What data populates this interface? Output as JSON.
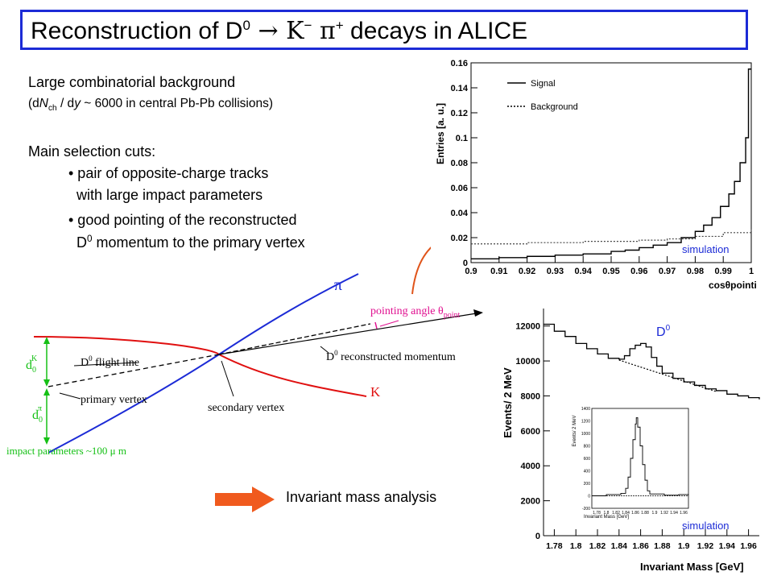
{
  "slide": {
    "title_main": "Reconstruction of D",
    "title_sup": "0",
    "title_arrow": " → K",
    "title_kminus": "−",
    "title_pi": " π",
    "title_piplus": "+",
    "title_end": " decays in ALICE",
    "line1": "Large combinatorial background",
    "line2_pre": "(d",
    "line2_N": "N",
    "line2_sub": "ch",
    "line2_mid": " / d",
    "line2_y": "y",
    "line2_post": " ~ 6000 in central Pb-Pb collisions)",
    "cuts_header": "Main selection cuts:",
    "cut1a": "• pair of opposite-charge tracks",
    "cut1b": "with large impact parameters",
    "cut2a": "• good pointing of the reconstructed",
    "cut2b_pre": "D",
    "cut2b_sup": "0",
    "cut2b_post": " momentum to the primary vertex",
    "inv_mass_label": "Invariant mass analysis",
    "arrow_color": "#f05a1e",
    "accent_color": "#1c2bd6"
  },
  "diagram": {
    "pi_label": "π",
    "k_label": "K",
    "pointing_angle": "pointing angle θ",
    "pointing_sub": "point",
    "flight_line": "D",
    "flight_line_sup": "0",
    "flight_line_post": " flight line",
    "reco_mom": "D",
    "reco_mom_sup": "0",
    "reco_mom_post": " reconstructed momentum",
    "primary_vertex": "primary vertex",
    "secondary_vertex": "secondary vertex",
    "d0k": "d",
    "d0k_sub": "0",
    "d0k_sup": "K",
    "d0pi": "d",
    "d0pi_sub": "0",
    "d0pi_sup": "π",
    "impact": "impact parameters ~100 μ m"
  },
  "chart_data": [
    {
      "type": "line",
      "name": "cos theta pointing distribution",
      "xlabel": "cosθpointing",
      "ylabel": "Entries [a. u.]",
      "xlim": [
        0.9,
        1.0
      ],
      "ylim": [
        0,
        0.16
      ],
      "x_ticks": [
        "0.9",
        "0.91",
        "0.92",
        "0.93",
        "0.94",
        "0.95",
        "0.96",
        "0.97",
        "0.98",
        "0.99",
        "1"
      ],
      "y_ticks": [
        "0",
        "0.02",
        "0.04",
        "0.06",
        "0.08",
        "0.1",
        "0.12",
        "0.14",
        "0.16"
      ],
      "legend": [
        "Signal",
        "Background"
      ],
      "legend_position": "top-right",
      "annotation": "simulation",
      "series": [
        {
          "name": "Signal",
          "x": [
            0.9,
            0.91,
            0.92,
            0.93,
            0.94,
            0.95,
            0.955,
            0.96,
            0.965,
            0.97,
            0.975,
            0.98,
            0.983,
            0.986,
            0.989,
            0.992,
            0.994,
            0.996,
            0.998,
            0.999,
            1.0
          ],
          "y": [
            0.003,
            0.004,
            0.005,
            0.006,
            0.007,
            0.009,
            0.01,
            0.012,
            0.014,
            0.016,
            0.02,
            0.025,
            0.03,
            0.036,
            0.045,
            0.055,
            0.065,
            0.08,
            0.1,
            0.155,
            0.155
          ]
        },
        {
          "name": "Background",
          "x": [
            0.9,
            0.92,
            0.94,
            0.96,
            0.97,
            0.98,
            0.99,
            1.0
          ],
          "y": [
            0.015,
            0.016,
            0.017,
            0.018,
            0.019,
            0.021,
            0.024,
            0.027
          ]
        }
      ]
    },
    {
      "type": "line",
      "name": "invariant mass",
      "xlabel": "Invariant Mass [GeV]",
      "ylabel": "Events/ 2 MeV",
      "xlim": [
        1.77,
        1.97
      ],
      "ylim": [
        0,
        13000
      ],
      "x_ticks": [
        "1.78",
        "1.8",
        "1.82",
        "1.84",
        "1.86",
        "1.88",
        "1.9",
        "1.92",
        "1.94",
        "1.96"
      ],
      "y_ticks": [
        "0",
        "2000",
        "4000",
        "6000",
        "8000",
        "10000",
        "12000"
      ],
      "peak_label": "D",
      "peak_label_sup": "0",
      "annotation": "simulation",
      "series": [
        {
          "name": "D0",
          "x": [
            1.77,
            1.78,
            1.79,
            1.8,
            1.81,
            1.82,
            1.83,
            1.84,
            1.845,
            1.85,
            1.855,
            1.86,
            1.865,
            1.87,
            1.875,
            1.88,
            1.89,
            1.9,
            1.91,
            1.92,
            1.93,
            1.94,
            1.95,
            1.96,
            1.97
          ],
          "y": [
            12100,
            11700,
            11400,
            11000,
            10700,
            10400,
            10150,
            10100,
            10300,
            10700,
            10900,
            11000,
            10800,
            10200,
            9700,
            9300,
            9000,
            8800,
            8600,
            8400,
            8300,
            8100,
            8000,
            7900,
            7800
          ]
        }
      ],
      "inset": {
        "xlabel": "Invariant Mass [GeV]",
        "ylabel": "Events/ 2 MeV",
        "x_ticks": [
          "1.78",
          "1.8",
          "1.82",
          "1.84",
          "1.86",
          "1.88",
          "1.9",
          "1.92",
          "1.94",
          "1.96"
        ],
        "y_ticks": [
          "-200",
          "0",
          "200",
          "400",
          "600",
          "800",
          "1000",
          "1200",
          "1400"
        ],
        "x": [
          1.77,
          1.8,
          1.83,
          1.84,
          1.845,
          1.85,
          1.855,
          1.86,
          1.862,
          1.865,
          1.87,
          1.875,
          1.88,
          1.885,
          1.89,
          1.92,
          1.95,
          1.97
        ],
        "y": [
          0,
          20,
          40,
          120,
          300,
          600,
          900,
          1150,
          1250,
          1100,
          800,
          500,
          250,
          80,
          30,
          10,
          20,
          0
        ]
      }
    }
  ]
}
